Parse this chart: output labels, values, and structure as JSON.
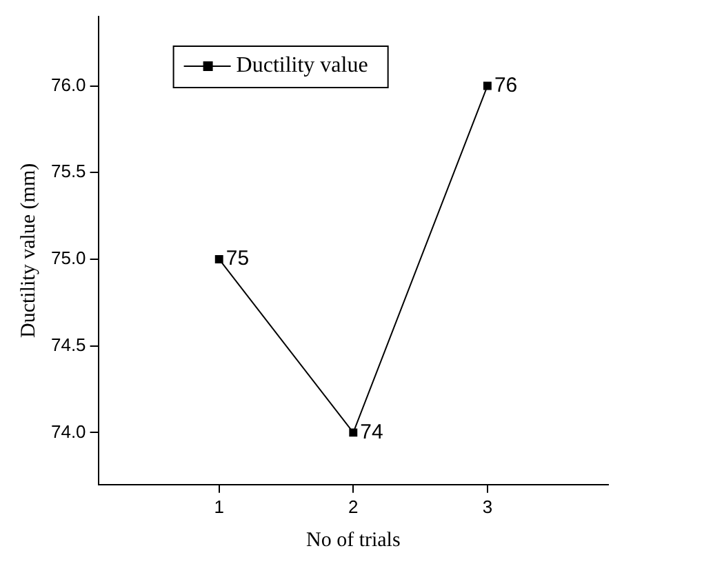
{
  "chart_data": {
    "type": "line",
    "xlabel": "No of trials",
    "ylabel": "Ductility value (mm)",
    "x": [
      1,
      2,
      3
    ],
    "series": [
      {
        "name": "Ductility value",
        "color": "#000000",
        "values": [
          75,
          74,
          76
        ]
      }
    ],
    "xlim": [
      0.1,
      3.9
    ],
    "xticks": [
      1,
      2,
      3
    ],
    "ylim": [
      73.7,
      76.4
    ],
    "yticks": [
      {
        "value": 74,
        "label": "74.0"
      },
      {
        "value": 74.5,
        "label": "74.5"
      },
      {
        "value": 75,
        "label": "75.0"
      },
      {
        "value": 75.5,
        "label": "75.5"
      },
      {
        "value": 76,
        "label": "76.0"
      }
    ],
    "grid": false,
    "legend": "top left",
    "marker": "square",
    "line_style": "solid",
    "data_labels": true
  }
}
